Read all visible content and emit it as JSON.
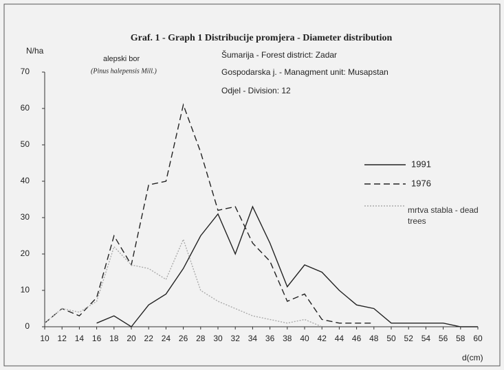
{
  "chart_data": {
    "type": "line",
    "title": "Graf. 1 - Graph 1 Distribucije promjera - Diameter distribution",
    "ylabel": "N/ha",
    "xlabel": "d(cm)",
    "annotations": [
      "alepski bor",
      "(Pinus halepensis Mill.)",
      "Šumarija - Forest district: Zadar",
      "Gospodarska j. - Managment unit: Musapstan",
      "Odjel - Division: 12"
    ],
    "x": [
      10,
      12,
      14,
      16,
      18,
      20,
      22,
      24,
      26,
      28,
      30,
      32,
      34,
      36,
      38,
      40,
      42,
      44,
      46,
      48,
      50,
      52,
      54,
      56,
      58,
      60
    ],
    "series": [
      {
        "name": "1991",
        "color": "#222222",
        "dash": "none",
        "values": [
          null,
          null,
          null,
          1,
          3,
          0,
          6,
          9,
          16,
          25,
          31,
          20,
          33,
          23,
          11,
          17,
          15,
          10,
          6,
          5,
          1,
          1,
          1,
          1,
          0,
          0
        ]
      },
      {
        "name": "1976",
        "color": "#222222",
        "dash": "9 5",
        "values": [
          1,
          5,
          3,
          8,
          25,
          17,
          39,
          40,
          61,
          48,
          32,
          33,
          23,
          18,
          7,
          9,
          2,
          1,
          1,
          1,
          null,
          null,
          null,
          null,
          null,
          null
        ]
      },
      {
        "name": "mrtva stabla - dead trees",
        "color": "#aaaaaa",
        "dash": "2 2",
        "values": [
          1,
          5,
          4,
          7,
          22,
          17,
          16,
          13,
          24,
          10,
          7,
          5,
          3,
          2,
          1,
          2,
          0,
          null,
          null,
          null,
          null,
          null,
          null,
          null,
          null,
          null
        ]
      }
    ],
    "xlim": [
      10,
      60
    ],
    "xticks": [
      10,
      12,
      14,
      16,
      18,
      20,
      22,
      24,
      26,
      28,
      30,
      32,
      34,
      36,
      38,
      40,
      42,
      44,
      46,
      48,
      50,
      52,
      54,
      56,
      58,
      60
    ],
    "ylim": [
      0,
      70
    ],
    "yticks": [
      0,
      10,
      20,
      30,
      40,
      50,
      60,
      70
    ]
  }
}
